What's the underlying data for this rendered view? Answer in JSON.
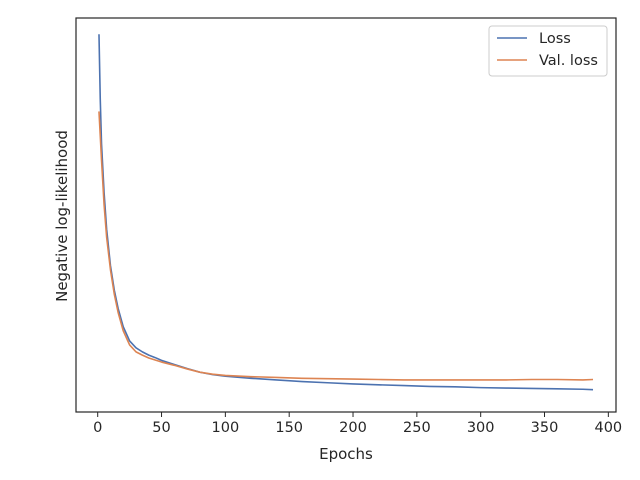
{
  "chart_data": {
    "type": "line",
    "title": "",
    "xlabel": "Epochs",
    "ylabel": "Negative log-likelihood",
    "xlim": [
      -17,
      406
    ],
    "ylim": [
      0.2,
      9.9
    ],
    "xticks": [
      0,
      50,
      100,
      150,
      200,
      250,
      300,
      350,
      400
    ],
    "yticks_shown": false,
    "grid": false,
    "legend": {
      "placement": "top-right"
    },
    "series": [
      {
        "name": "Loss",
        "color": "#4c72b0",
        "x": [
          1,
          2,
          3,
          5,
          7,
          10,
          13,
          16,
          20,
          25,
          30,
          35,
          40,
          45,
          50,
          60,
          70,
          80,
          90,
          100,
          120,
          140,
          160,
          180,
          200,
          220,
          240,
          260,
          280,
          300,
          320,
          340,
          360,
          380,
          388
        ],
        "y": [
          9.5,
          7.9,
          6.8,
          5.6,
          4.7,
          3.8,
          3.2,
          2.75,
          2.3,
          1.95,
          1.78,
          1.68,
          1.6,
          1.54,
          1.47,
          1.37,
          1.27,
          1.18,
          1.12,
          1.08,
          1.03,
          0.99,
          0.95,
          0.92,
          0.89,
          0.87,
          0.85,
          0.83,
          0.82,
          0.8,
          0.79,
          0.78,
          0.77,
          0.76,
          0.75
        ]
      },
      {
        "name": "Val. loss",
        "color": "#dd8452",
        "x": [
          1,
          2,
          3,
          5,
          7,
          10,
          13,
          16,
          20,
          25,
          30,
          35,
          40,
          45,
          50,
          60,
          70,
          80,
          90,
          100,
          120,
          140,
          160,
          180,
          200,
          220,
          240,
          260,
          280,
          300,
          320,
          340,
          360,
          380,
          388
        ],
        "y": [
          7.6,
          7.0,
          6.4,
          5.3,
          4.5,
          3.7,
          3.1,
          2.65,
          2.2,
          1.85,
          1.68,
          1.6,
          1.53,
          1.48,
          1.43,
          1.35,
          1.26,
          1.18,
          1.13,
          1.1,
          1.07,
          1.05,
          1.03,
          1.02,
          1.01,
          1.0,
          0.99,
          0.99,
          0.99,
          0.99,
          0.99,
          1.0,
          1.0,
          0.99,
          1.0
        ]
      }
    ]
  }
}
